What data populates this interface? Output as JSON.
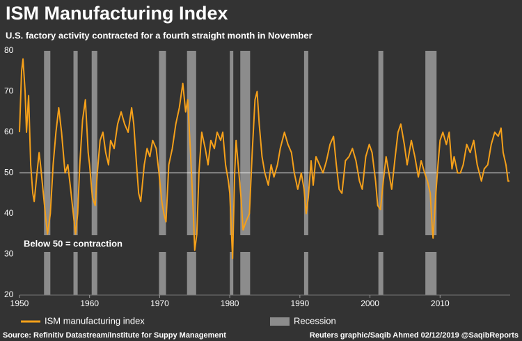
{
  "chart_data": {
    "type": "line",
    "title": "ISM Manufacturing Index",
    "subtitle": "U.S. factory activity contracted for a fourth straight month in November",
    "annotation": "Below 50 = contraction",
    "source": "Source: Refinitiv Datastream/Institute for Suppy Management",
    "credit": "Reuters graphic/Saqib Ahmed 02/12/2019 @SaqibReports",
    "xlim": [
      1950,
      2020
    ],
    "xticks": [
      1950,
      1960,
      1970,
      1980,
      1990,
      2000,
      2010
    ],
    "ylim": [
      20,
      80
    ],
    "yticks": [
      20,
      30,
      40,
      50,
      60,
      70,
      80
    ],
    "reference_line": 50,
    "x": [
      1950.0,
      1950.3,
      1950.5,
      1950.8,
      1951.0,
      1951.3,
      1951.6,
      1951.9,
      1952.1,
      1952.5,
      1952.8,
      1953.0,
      1953.4,
      1953.8,
      1954.0,
      1954.4,
      1954.8,
      1955.2,
      1955.6,
      1956.0,
      1956.5,
      1956.9,
      1957.3,
      1957.8,
      1958.0,
      1958.3,
      1958.6,
      1959.0,
      1959.4,
      1959.8,
      1960.0,
      1960.4,
      1960.8,
      1961.1,
      1961.5,
      1961.9,
      1962.3,
      1962.7,
      1963.0,
      1963.5,
      1964.0,
      1964.5,
      1965.0,
      1965.5,
      1966.0,
      1966.3,
      1966.7,
      1967.0,
      1967.3,
      1967.8,
      1968.2,
      1968.6,
      1969.0,
      1969.5,
      1969.9,
      1970.3,
      1970.6,
      1970.9,
      1971.3,
      1971.8,
      1972.3,
      1972.8,
      1973.3,
      1973.7,
      1974.0,
      1974.4,
      1974.8,
      1975.0,
      1975.3,
      1975.6,
      1976.0,
      1976.5,
      1976.9,
      1977.3,
      1977.8,
      1978.2,
      1978.7,
      1979.0,
      1979.4,
      1979.8,
      1980.0,
      1980.4,
      1980.7,
      1980.9,
      1981.2,
      1981.6,
      1981.9,
      1982.3,
      1982.8,
      1983.2,
      1983.6,
      1983.9,
      1984.2,
      1984.6,
      1985.0,
      1985.5,
      1985.9,
      1986.3,
      1986.8,
      1987.2,
      1987.8,
      1988.3,
      1988.8,
      1989.2,
      1989.7,
      1990.2,
      1990.6,
      1990.9,
      1991.2,
      1991.6,
      1991.9,
      1992.3,
      1992.8,
      1993.3,
      1993.8,
      1994.3,
      1994.8,
      1995.2,
      1995.6,
      1996.0,
      1996.5,
      1997.0,
      1997.5,
      1998.0,
      1998.5,
      1998.9,
      1999.4,
      1999.9,
      2000.3,
      2000.8,
      2001.1,
      2001.5,
      2001.9,
      2002.3,
      2002.7,
      2003.1,
      2003.6,
      2004.0,
      2004.4,
      2004.9,
      2005.3,
      2005.9,
      2006.4,
      2006.9,
      2007.3,
      2007.8,
      2008.2,
      2008.6,
      2008.9,
      2009.0,
      2009.4,
      2009.7,
      2010.0,
      2010.4,
      2010.9,
      2011.3,
      2011.7,
      2012.0,
      2012.5,
      2012.9,
      2013.3,
      2013.8,
      2014.3,
      2014.8,
      2015.3,
      2015.9,
      2016.3,
      2016.8,
      2017.3,
      2017.8,
      2018.3,
      2018.7,
      2019.0,
      2019.4,
      2019.7,
      2019.9
    ],
    "series": [
      {
        "name": "ISM manufacturing index",
        "color": "#f5a01a",
        "values": [
          60,
          75,
          78,
          70,
          60,
          69,
          52,
          45,
          43,
          50,
          55,
          52,
          45,
          38,
          35,
          40,
          52,
          60,
          66,
          60,
          50,
          52,
          46,
          38,
          35,
          40,
          52,
          63,
          68,
          55,
          52,
          44,
          42,
          50,
          58,
          60,
          55,
          52,
          58,
          56,
          62,
          65,
          62,
          60,
          66,
          62,
          52,
          45,
          43,
          52,
          56,
          54,
          58,
          56,
          50,
          43,
          40,
          38,
          52,
          56,
          62,
          66,
          72,
          65,
          68,
          55,
          40,
          31,
          35,
          50,
          60,
          56,
          52,
          58,
          56,
          60,
          58,
          60,
          52,
          48,
          45,
          29,
          50,
          58,
          52,
          44,
          36,
          38,
          40,
          55,
          68,
          70,
          62,
          54,
          50,
          47,
          52,
          49,
          52,
          56,
          60,
          57,
          55,
          50,
          46,
          50,
          46,
          40,
          44,
          53,
          47,
          54,
          52,
          50,
          53,
          57,
          59,
          52,
          46,
          45,
          53,
          54,
          56,
          53,
          48,
          46,
          54,
          57,
          55,
          48,
          42,
          41,
          48,
          54,
          50,
          46,
          54,
          60,
          62,
          57,
          52,
          58,
          54,
          49,
          53,
          50,
          48,
          45,
          36,
          34,
          45,
          52,
          58,
          60,
          57,
          60,
          51,
          54,
          50,
          50,
          52,
          57,
          55,
          58,
          52,
          48,
          51,
          52,
          57,
          60,
          59,
          61,
          55,
          52,
          48,
          48
        ]
      }
    ],
    "recession": {
      "name": "Recession",
      "color": "#8c8c8c",
      "spans": [
        [
          1953.5,
          1954.4
        ],
        [
          1957.7,
          1958.3
        ],
        [
          1960.3,
          1961.1
        ],
        [
          1969.9,
          1970.9
        ],
        [
          1973.9,
          1975.2
        ],
        [
          1980.0,
          1980.5
        ],
        [
          1981.5,
          1982.9
        ],
        [
          1990.6,
          1991.2
        ],
        [
          2001.2,
          2001.9
        ],
        [
          2007.9,
          2009.5
        ]
      ]
    }
  }
}
